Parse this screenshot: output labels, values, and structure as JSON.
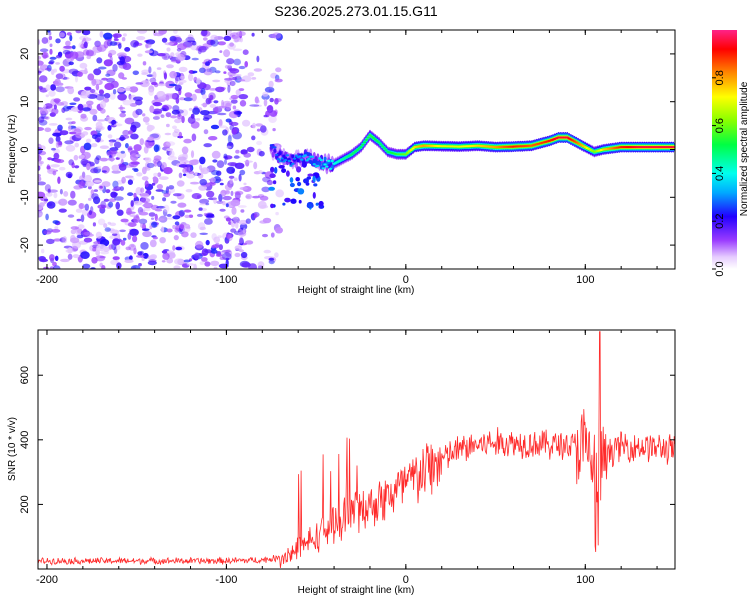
{
  "chart_data": [
    {
      "type": "heatmap",
      "title": "S236.2025.273.01.15.G11",
      "xlabel": "Height of straight line (km)",
      "ylabel": "Frequency (Hz)",
      "xlim": [
        -205,
        150
      ],
      "ylim": [
        -25,
        25
      ],
      "xticks": [
        -200,
        -100,
        0,
        100
      ],
      "yticks": [
        -20,
        -10,
        0,
        10,
        20
      ],
      "ridge": {
        "x": [
          -75,
          -70,
          -65,
          -60,
          -55,
          -50,
          -45,
          -40,
          -35,
          -30,
          -25,
          -20,
          -15,
          -10,
          -5,
          0,
          5,
          10,
          20,
          30,
          40,
          50,
          60,
          70,
          80,
          85,
          90,
          95,
          100,
          105,
          110,
          120,
          130,
          140,
          150
        ],
        "freq": [
          0,
          -1.5,
          -2.5,
          -2.0,
          -1.5,
          -2.5,
          -3.0,
          -3.0,
          -2.0,
          -1.0,
          0.5,
          3.0,
          1.5,
          -0.5,
          -1.0,
          -1.0,
          0.5,
          0.8,
          0.7,
          0.6,
          0.8,
          0.5,
          0.6,
          0.8,
          1.8,
          2.5,
          2.5,
          1.5,
          0.5,
          -0.5,
          0.0,
          0.5,
          0.5,
          0.5,
          0.5
        ],
        "amplitude": [
          0.25,
          0.3,
          0.3,
          0.3,
          0.35,
          0.35,
          0.4,
          0.4,
          0.45,
          0.5,
          0.5,
          0.55,
          0.5,
          0.5,
          0.55,
          0.6,
          0.75,
          0.8,
          0.7,
          0.7,
          0.75,
          0.8,
          0.9,
          0.85,
          0.9,
          0.95,
          0.95,
          0.85,
          0.75,
          0.6,
          0.75,
          0.9,
          0.95,
          0.95,
          0.95
        ]
      },
      "noise_region_x": [
        -205,
        -70
      ],
      "colorbar": {
        "label": "Normalized spectral amplitude",
        "range": [
          0,
          1
        ],
        "ticks": [
          "0.0",
          "0.2",
          "0.4",
          "0.6",
          "0.8"
        ]
      }
    },
    {
      "type": "line",
      "xlabel": "Height of straight line (km)",
      "ylabel": "SNR (10 * v/v)",
      "xlim": [
        -205,
        150
      ],
      "ylim": [
        0,
        740
      ],
      "xticks": [
        -200,
        -100,
        0,
        100
      ],
      "yticks": [
        200,
        400,
        600
      ],
      "color": "#ff2a2a",
      "series": [
        {
          "name": "SNR",
          "x": [
            -205,
            -180,
            -150,
            -120,
            -100,
            -80,
            -70,
            -60,
            -50,
            -40,
            -30,
            -20,
            -10,
            0,
            10,
            20,
            30,
            40,
            50,
            60,
            70,
            80,
            90,
            95,
            100,
            105,
            108,
            110,
            115,
            120,
            130,
            140,
            150
          ],
          "values": [
            25,
            25,
            25,
            25,
            25,
            28,
            35,
            60,
            100,
            140,
            170,
            200,
            225,
            260,
            300,
            340,
            370,
            385,
            390,
            390,
            390,
            385,
            385,
            380,
            370,
            320,
            260,
            330,
            370,
            380,
            380,
            375,
            370
          ]
        }
      ]
    }
  ]
}
